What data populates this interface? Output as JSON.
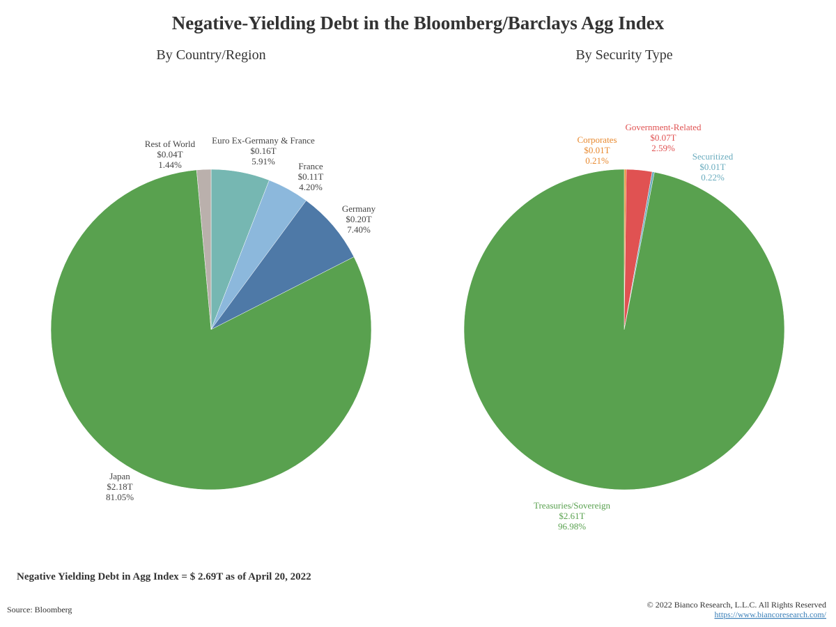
{
  "title": "Negative-Yielding Debt in the Bloomberg/Barclays Agg Index",
  "note": "Negative Yielding Debt in Agg Index = $ 2.69T as of April 20, 2022",
  "source": "Source: Bloomberg",
  "copyright": "© 2022 Bianco Research, L.L.C. All Rights Reserved",
  "url": "https://www.biancoresearch.com/",
  "chart_data": [
    {
      "type": "pie",
      "title": "By Country/Region",
      "labels_colored": false,
      "categories": [
        "Euro Ex-Germany & France",
        "France",
        "Germany",
        "Japan",
        "Rest of World"
      ],
      "values": [
        5.91,
        4.2,
        7.4,
        81.05,
        1.44
      ],
      "value_labels": [
        "5.91%",
        "4.20%",
        "7.40%",
        "81.05%",
        "1.44%"
      ],
      "amounts": [
        0.16,
        0.11,
        0.2,
        2.18,
        0.04
      ],
      "amount_labels": [
        "$0.16T",
        "$0.11T",
        "$0.20T",
        "$2.18T",
        "$0.04T"
      ],
      "colors": [
        "#76b7b2",
        "#8cb8dc",
        "#4e79a7",
        "#59a14f",
        "#bab0ac"
      ]
    },
    {
      "type": "pie",
      "title": "By Security Type",
      "labels_colored": true,
      "categories": [
        "Corporates",
        "Government-Related",
        "Securitized",
        "Treasuries/Sovereign"
      ],
      "values": [
        0.21,
        2.59,
        0.22,
        96.98
      ],
      "value_labels": [
        "0.21%",
        "2.59%",
        "0.22%",
        "96.98%"
      ],
      "amounts": [
        0.01,
        0.07,
        0.01,
        2.61
      ],
      "amount_labels": [
        "$0.01T",
        "$0.07T",
        "$0.01T",
        "$2.61T"
      ],
      "colors": [
        "#e8892f",
        "#e05252",
        "#6aacbe",
        "#59a14f"
      ]
    }
  ]
}
